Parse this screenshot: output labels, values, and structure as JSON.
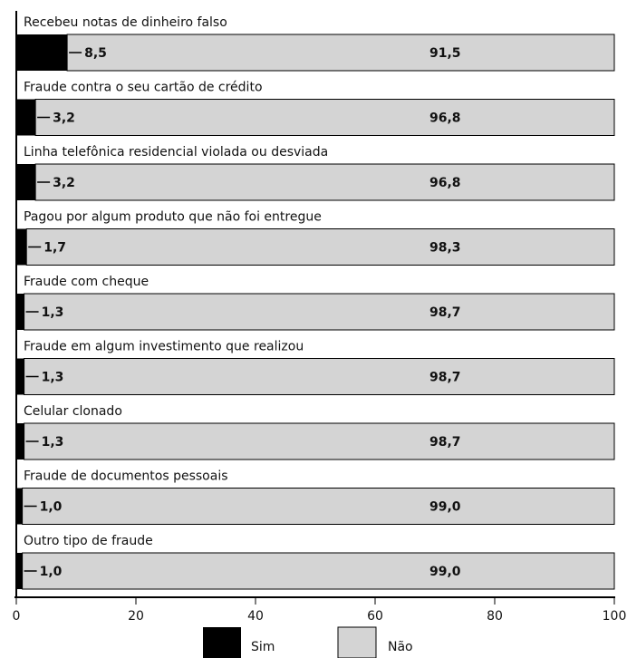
{
  "chart_data": {
    "type": "bar",
    "orientation": "horizontal",
    "stacked": true,
    "categories": [
      "Recebeu notas de dinheiro falso",
      "Fraude contra o seu cartão de crédito",
      "Linha telefônica residencial violada ou desviada",
      "Pagou por algum produto que não foi entregue",
      "Fraude com cheque",
      "Fraude em algum investimento que realizou",
      "Celular clonado",
      "Fraude de documentos pessoais",
      "Outro tipo de fraude"
    ],
    "series": [
      {
        "name": "Sim",
        "color": "#000000",
        "values": [
          8.5,
          3.2,
          3.2,
          1.7,
          1.3,
          1.3,
          1.3,
          1.0,
          1.0
        ],
        "labels": [
          "8,5",
          "3,2",
          "3,2",
          "1,7",
          "1,3",
          "1,3",
          "1,3",
          "1,0",
          "1,0"
        ]
      },
      {
        "name": "Não",
        "color": "#d4d4d4",
        "values": [
          91.5,
          96.8,
          96.8,
          98.3,
          98.7,
          98.7,
          98.7,
          99.0,
          99.0
        ],
        "labels": [
          "91,5",
          "96,8",
          "96,8",
          "98,3",
          "98,7",
          "98,7",
          "98,7",
          "99,0",
          "99,0"
        ]
      }
    ],
    "xlim": [
      0,
      100
    ],
    "xticks": [
      "0",
      "20",
      "40",
      "60",
      "80",
      "100"
    ],
    "grid": false,
    "legend_position": "bottom-center"
  }
}
